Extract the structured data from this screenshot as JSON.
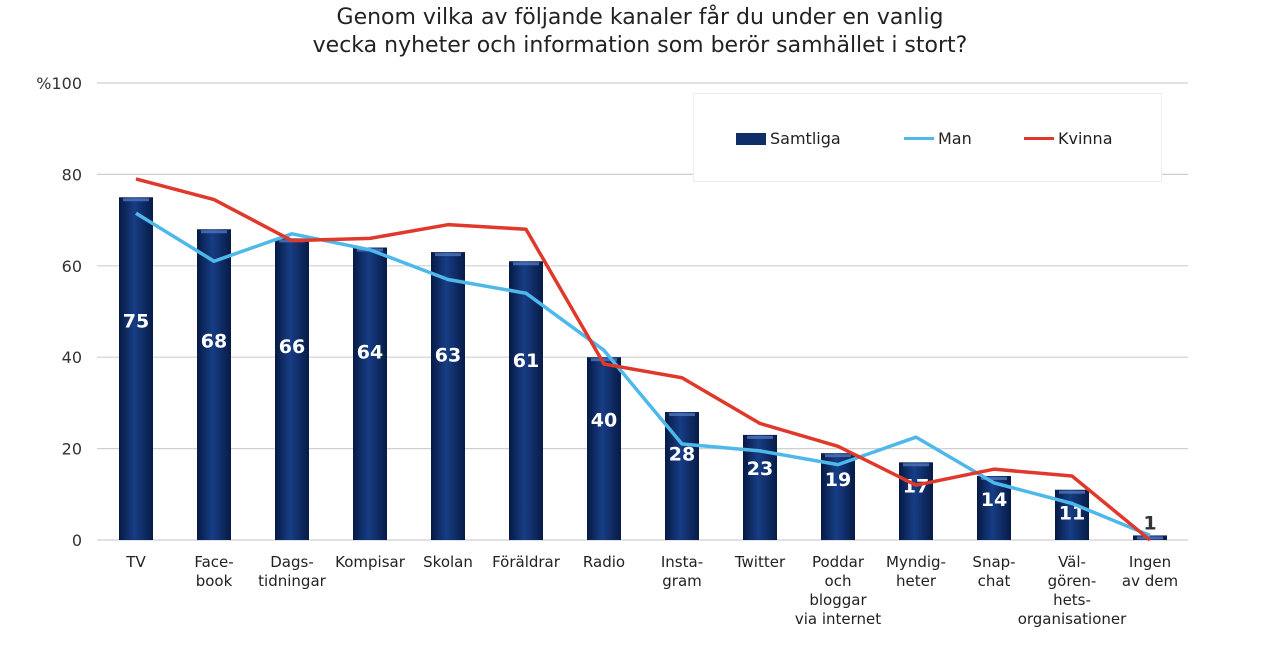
{
  "chart_data": {
    "type": "bar",
    "title": "Genom vilka av följande kanaler får du under en vanlig\nvecka nyheter och information som berör samhället i stort?",
    "ylabel": "%",
    "ylim": [
      0,
      100
    ],
    "yticks": [
      "0",
      "20",
      "40",
      "60",
      "80",
      "%100"
    ],
    "grid": true,
    "legend_position": "top-right",
    "categories": [
      "TV",
      "Face-\nbook",
      "Dags-\ntidningar",
      "Kompisar",
      "Skolan",
      "Föräldrar",
      "Radio",
      "Insta-\ngram",
      "Twitter",
      "Poddar\noch\nbloggar\nvia internet",
      "Myndig-\nheter",
      "Snap-\nchat",
      "Väl-\ngören-\nhets-\norganisationer",
      "Ingen\nav dem"
    ],
    "series": [
      {
        "name": "Samtliga",
        "type": "bar",
        "color": "#0f2d66",
        "values": [
          75,
          68,
          66,
          64,
          63,
          61,
          40,
          28,
          23,
          19,
          17,
          14,
          11,
          1
        ]
      },
      {
        "name": "Man",
        "type": "line",
        "color": "#4fb8ea",
        "values": [
          71.5,
          61,
          67,
          63.5,
          57,
          54,
          41.5,
          21,
          19.5,
          16.5,
          22.5,
          12.5,
          8,
          1
        ]
      },
      {
        "name": "Kvinna",
        "type": "line",
        "color": "#e0392b",
        "values": [
          79,
          74.5,
          65.5,
          66,
          69,
          68,
          38.5,
          35.5,
          25.5,
          20.5,
          12,
          15.5,
          14,
          0
        ]
      }
    ]
  }
}
